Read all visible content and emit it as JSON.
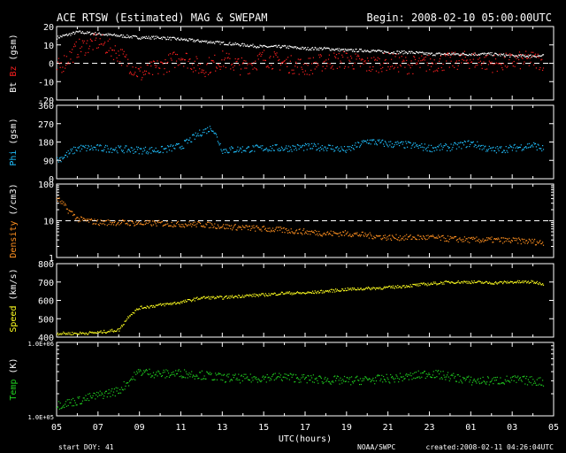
{
  "header": {
    "title": "ACE RTSW (Estimated) MAG & SWEPAM",
    "begin": "Begin: 2008-02-10 05:00:00UTC"
  },
  "footer": {
    "start_doy": "start DOY:  41",
    "source": "NOAA/SWPC",
    "created": "created:2008-02-11 04:26:04UTC"
  },
  "colors": {
    "bt": "#ffffff",
    "bz": "#ff2020",
    "phi": "#20c0ff",
    "density": "#ff9020",
    "speed": "#ffff20",
    "temp": "#20d020"
  },
  "chart_data": [
    {
      "type": "scatter",
      "ylabel_parts": [
        "Bt",
        "Bz",
        "(gsm)"
      ],
      "ylim": [
        -20,
        20
      ],
      "yticks": [
        "20",
        "10",
        "0",
        "-10",
        "-20"
      ],
      "reference_line": 0,
      "series": [
        {
          "name": "Bt",
          "x": [
            5,
            6,
            7,
            8,
            9,
            10,
            11,
            12,
            13,
            14,
            15,
            16,
            17,
            18,
            19,
            20,
            21,
            22,
            23,
            24,
            25,
            26,
            27,
            28,
            28.5
          ],
          "values": [
            14,
            17,
            16,
            15,
            14,
            14,
            13,
            12,
            11,
            10,
            9,
            9,
            8,
            8,
            7,
            7,
            6,
            6,
            5,
            5,
            5,
            5,
            4,
            4,
            4
          ]
        },
        {
          "name": "Bz",
          "x": [
            5,
            6,
            7,
            8,
            9,
            10,
            11,
            12,
            13,
            14,
            15,
            16,
            17,
            18,
            19,
            20,
            21,
            22,
            23,
            24,
            25,
            26,
            27,
            28,
            28.5
          ],
          "values": [
            -3,
            8,
            12,
            5,
            -6,
            -2,
            4,
            -3,
            2,
            -2,
            3,
            0,
            -2,
            1,
            2,
            -1,
            1,
            -1,
            0,
            1,
            2,
            0,
            1,
            2,
            1
          ]
        }
      ]
    },
    {
      "type": "scatter",
      "ylabel_parts": [
        "Phi",
        "(gsm)"
      ],
      "ylim": [
        0,
        360
      ],
      "yticks": [
        "360",
        "270",
        "180",
        "90",
        "0"
      ],
      "series": [
        {
          "name": "Phi",
          "x": [
            5,
            6,
            7,
            8,
            9,
            10,
            11,
            12,
            12.5,
            13,
            14,
            15,
            16,
            17,
            18,
            19,
            20,
            21,
            22,
            23,
            24,
            25,
            26,
            27,
            28,
            28.5
          ],
          "values": [
            90,
            150,
            150,
            145,
            140,
            140,
            160,
            230,
            250,
            140,
            145,
            150,
            150,
            155,
            155,
            140,
            185,
            170,
            165,
            150,
            155,
            175,
            140,
            150,
            165,
            145
          ]
        }
      ]
    },
    {
      "type": "scatter",
      "ylabel_parts": [
        "Density",
        "(/cm3)"
      ],
      "yscale": "log",
      "ylim": [
        1,
        100
      ],
      "yticks": [
        "100",
        "10",
        "1"
      ],
      "reference_line": 10,
      "series": [
        {
          "name": "Density",
          "x": [
            5,
            5.5,
            6,
            7,
            8,
            9,
            10,
            11,
            12,
            13,
            14,
            15,
            16,
            17,
            18,
            19,
            20,
            21,
            22,
            23,
            24,
            25,
            26,
            27,
            28,
            28.5
          ],
          "values": [
            40,
            20,
            11,
            9,
            9,
            8.5,
            8.5,
            8,
            8,
            7,
            6.5,
            6,
            5.5,
            5,
            4.5,
            4.5,
            4,
            3.5,
            3.5,
            3.5,
            3.2,
            3,
            3,
            2.9,
            2.7,
            2.5
          ]
        }
      ]
    },
    {
      "type": "scatter",
      "ylabel_parts": [
        "Speed",
        "(km/s)"
      ],
      "ylim": [
        400,
        800
      ],
      "yticks": [
        "800",
        "700",
        "600",
        "500",
        "400"
      ],
      "series": [
        {
          "name": "Speed",
          "x": [
            5,
            6,
            7,
            8,
            8.5,
            9,
            10,
            11,
            12,
            13,
            14,
            15,
            16,
            17,
            18,
            19,
            20,
            21,
            22,
            23,
            24,
            25,
            26,
            27,
            28,
            28.5
          ],
          "values": [
            420,
            420,
            425,
            440,
            520,
            560,
            575,
            590,
            615,
            615,
            625,
            630,
            640,
            640,
            650,
            660,
            665,
            670,
            680,
            690,
            700,
            700,
            695,
            700,
            700,
            690
          ]
        }
      ]
    },
    {
      "type": "scatter",
      "ylabel_parts": [
        "Temp",
        "(K)"
      ],
      "yscale": "log",
      "ylim": [
        100000,
        1000000
      ],
      "yticks": [
        "1.0E+06",
        "1.0E+05"
      ],
      "series": [
        {
          "name": "Temp",
          "x": [
            5,
            6,
            7,
            8,
            8.5,
            9,
            10,
            11,
            12,
            13,
            14,
            15,
            16,
            17,
            18,
            19,
            20,
            21,
            22,
            23,
            24,
            25,
            26,
            27,
            28,
            28.5
          ],
          "values": [
            140000,
            160000,
            190000,
            220000,
            300000,
            400000,
            370000,
            380000,
            360000,
            330000,
            320000,
            330000,
            340000,
            320000,
            310000,
            300000,
            310000,
            320000,
            340000,
            380000,
            340000,
            300000,
            300000,
            310000,
            300000,
            290000
          ]
        }
      ]
    }
  ],
  "xaxis": {
    "ticks": [
      "05",
      "07",
      "09",
      "11",
      "13",
      "15",
      "17",
      "19",
      "21",
      "23",
      "01",
      "03",
      "05"
    ],
    "label": "UTC(hours)"
  }
}
